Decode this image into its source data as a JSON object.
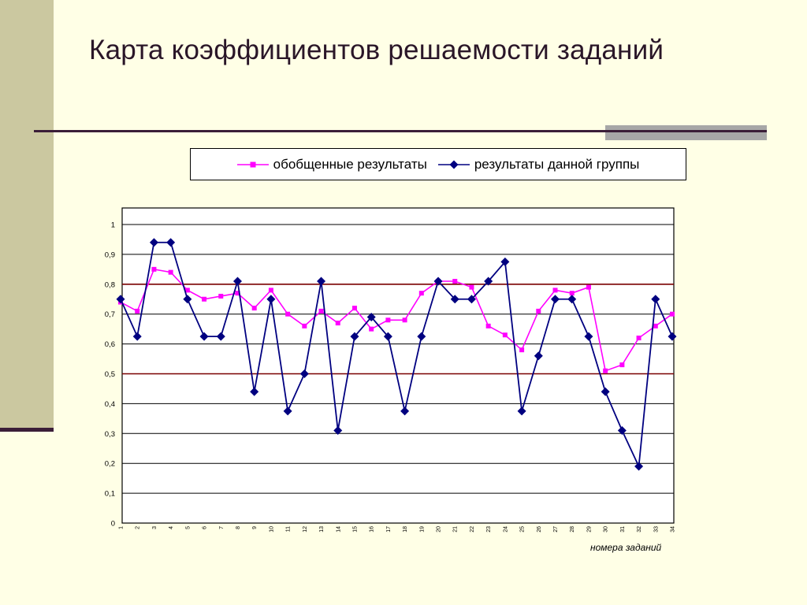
{
  "title": "Карта коэффициентов решаемости заданий",
  "colors": {
    "general": "#ff00ff",
    "group": "#000080",
    "reference_line": "#7a0000",
    "grid": "#000000"
  },
  "chart_data": {
    "type": "line",
    "xlabel": "номера заданий",
    "ylabel": "",
    "ylim": [
      0,
      1
    ],
    "y_ticks": [
      "0",
      "0,1",
      "0,2",
      "0,3",
      "0,4",
      "0,5",
      "0,6",
      "0,7",
      "0,8",
      "0,9",
      "1"
    ],
    "x_categories": [
      "1",
      "2",
      "3",
      "4",
      "5",
      "6",
      "7",
      "8",
      "9",
      "10",
      "11",
      "12",
      "13",
      "14",
      "15",
      "16",
      "17",
      "18",
      "19",
      "20",
      "21",
      "22",
      "23",
      "24",
      "25",
      "26",
      "27",
      "28",
      "29",
      "30",
      "31",
      "32",
      "33",
      "34"
    ],
    "reference_lines": [
      0.5,
      0.8
    ],
    "grid": true,
    "legend_position": "top",
    "series": [
      {
        "name": "обобщенные результаты",
        "marker": "square",
        "values": [
          0.74,
          0.71,
          0.85,
          0.84,
          0.78,
          0.75,
          0.76,
          0.77,
          0.72,
          0.78,
          0.7,
          0.66,
          0.71,
          0.67,
          0.72,
          0.65,
          0.68,
          0.68,
          0.77,
          0.81,
          0.81,
          0.79,
          0.66,
          0.63,
          0.58,
          0.71,
          0.78,
          0.77,
          0.79,
          0.51,
          0.53,
          0.62,
          0.66,
          0.7
        ]
      },
      {
        "name": "результаты данной группы",
        "marker": "diamond",
        "values": [
          0.75,
          0.625,
          0.94,
          0.94,
          0.75,
          0.625,
          0.625,
          0.81,
          0.44,
          0.75,
          0.375,
          0.5,
          0.81,
          0.31,
          0.625,
          0.69,
          0.625,
          0.375,
          0.625,
          0.81,
          0.75,
          0.75,
          0.81,
          0.875,
          0.375,
          0.56,
          0.75,
          0.75,
          0.625,
          0.44,
          0.31,
          0.19,
          0.75,
          0.625
        ]
      }
    ]
  }
}
